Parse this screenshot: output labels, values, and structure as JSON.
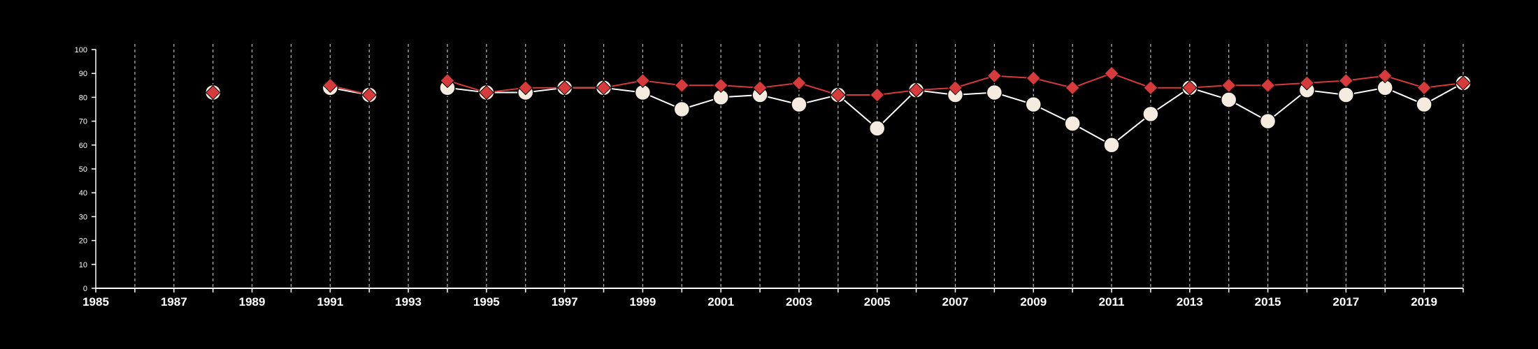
{
  "chart_data": {
    "type": "line",
    "title": "",
    "xlabel": "",
    "ylabel": "",
    "xlim": [
      1985,
      2020
    ],
    "ylim": [
      0,
      100
    ],
    "y_ticks": [
      0,
      10,
      20,
      30,
      40,
      50,
      60,
      70,
      80,
      90,
      100
    ],
    "x_tick_labels": [
      "1985",
      "1987",
      "1989",
      "1991",
      "1993",
      "1995",
      "1997",
      "1999",
      "2001",
      "2003",
      "2005",
      "2007",
      "2009",
      "2011",
      "2013",
      "2015",
      "2017",
      "2019"
    ],
    "vertical_gridlines": "dashed, every year",
    "background_color": "#000000",
    "axis_color": "#ffffff",
    "series": [
      {
        "marker": "circle",
        "color": "#f5ecdf",
        "line_color": "#ffffff",
        "x": [
          1988,
          1991,
          1992,
          1994,
          1995,
          1996,
          1997,
          1998,
          1999,
          2000,
          2001,
          2002,
          2003,
          2004,
          2005,
          2006,
          2007,
          2008,
          2009,
          2010,
          2011,
          2012,
          2013,
          2014,
          2015,
          2016,
          2017,
          2018,
          2019,
          2020
        ],
        "values": [
          82,
          84,
          81,
          84,
          82,
          82,
          84,
          84,
          82,
          75,
          80,
          81,
          77,
          81,
          67,
          83,
          81,
          82,
          77,
          69,
          60,
          73,
          84,
          79,
          70,
          83,
          81,
          84,
          77,
          86
        ]
      },
      {
        "marker": "diamond",
        "color": "#d63a3a",
        "line_color": "#d63a3a",
        "x": [
          1988,
          1991,
          1992,
          1994,
          1995,
          1996,
          1997,
          1998,
          1999,
          2000,
          2001,
          2002,
          2003,
          2004,
          2005,
          2006,
          2007,
          2008,
          2009,
          2010,
          2011,
          2012,
          2013,
          2014,
          2015,
          2016,
          2017,
          2018,
          2019,
          2020
        ],
        "values": [
          82,
          85,
          81,
          87,
          82,
          84,
          84,
          84,
          87,
          85,
          85,
          84,
          86,
          81,
          81,
          83,
          84,
          89,
          88,
          84,
          90,
          84,
          84,
          85,
          85,
          86,
          87,
          89,
          84,
          86
        ]
      }
    ]
  }
}
